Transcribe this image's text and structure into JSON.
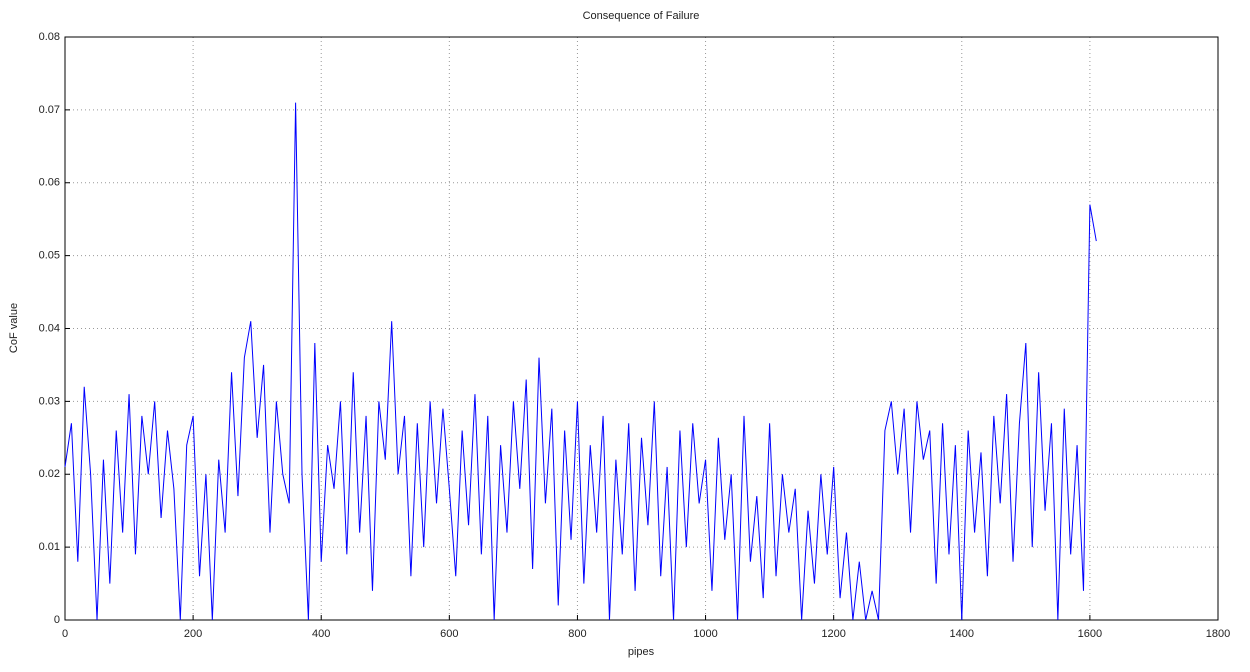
{
  "chart_data": {
    "type": "line",
    "title": "Consequence of Failure",
    "x_label": "pipes",
    "y_label": "CoF value",
    "color": "#0000ff",
    "grid": true,
    "xlim": [
      0,
      1800
    ],
    "xticks": [
      0,
      200,
      400,
      600,
      800,
      1000,
      1200,
      1400,
      1600,
      1800
    ],
    "ylim": [
      0,
      0.08
    ],
    "yticks": [
      0,
      0.01,
      0.02,
      0.03,
      0.04,
      0.05,
      0.06,
      0.07,
      0.08
    ],
    "x": [
      0,
      10,
      20,
      30,
      40,
      50,
      60,
      70,
      80,
      90,
      100,
      110,
      120,
      130,
      140,
      150,
      160,
      170,
      180,
      190,
      200,
      210,
      220,
      230,
      240,
      250,
      260,
      270,
      280,
      290,
      300,
      310,
      320,
      330,
      340,
      350,
      360,
      370,
      380,
      390,
      400,
      410,
      420,
      430,
      440,
      450,
      460,
      470,
      480,
      490,
      500,
      510,
      520,
      530,
      540,
      550,
      560,
      570,
      580,
      590,
      600,
      610,
      620,
      630,
      640,
      650,
      660,
      670,
      680,
      690,
      700,
      710,
      720,
      730,
      740,
      750,
      760,
      770,
      780,
      790,
      800,
      810,
      820,
      830,
      840,
      850,
      860,
      870,
      880,
      890,
      900,
      910,
      920,
      930,
      940,
      950,
      960,
      970,
      980,
      990,
      1000,
      1010,
      1020,
      1030,
      1040,
      1050,
      1060,
      1070,
      1080,
      1090,
      1100,
      1110,
      1120,
      1130,
      1140,
      1150,
      1160,
      1170,
      1180,
      1190,
      1200,
      1210,
      1220,
      1230,
      1240,
      1250,
      1260,
      1270,
      1280,
      1290,
      1300,
      1310,
      1320,
      1330,
      1340,
      1350,
      1360,
      1370,
      1380,
      1390,
      1400,
      1410,
      1420,
      1430,
      1440,
      1450,
      1460,
      1470,
      1480,
      1490,
      1500,
      1510,
      1520,
      1530,
      1540,
      1550,
      1560,
      1570,
      1580,
      1590,
      1600,
      1610
    ],
    "values": [
      0.021,
      0.027,
      0.008,
      0.032,
      0.02,
      0.0,
      0.022,
      0.005,
      0.026,
      0.012,
      0.031,
      0.009,
      0.028,
      0.02,
      0.03,
      0.014,
      0.026,
      0.018,
      0.0,
      0.024,
      0.028,
      0.006,
      0.02,
      0.0,
      0.022,
      0.012,
      0.034,
      0.017,
      0.036,
      0.041,
      0.025,
      0.035,
      0.012,
      0.03,
      0.02,
      0.016,
      0.071,
      0.02,
      0.0,
      0.038,
      0.008,
      0.024,
      0.018,
      0.03,
      0.009,
      0.034,
      0.012,
      0.028,
      0.004,
      0.03,
      0.022,
      0.041,
      0.02,
      0.028,
      0.006,
      0.027,
      0.01,
      0.03,
      0.016,
      0.029,
      0.018,
      0.006,
      0.026,
      0.013,
      0.031,
      0.009,
      0.028,
      0.0,
      0.024,
      0.012,
      0.03,
      0.018,
      0.033,
      0.007,
      0.036,
      0.016,
      0.029,
      0.002,
      0.026,
      0.011,
      0.03,
      0.005,
      0.024,
      0.012,
      0.028,
      0.0,
      0.022,
      0.009,
      0.027,
      0.004,
      0.025,
      0.013,
      0.03,
      0.006,
      0.021,
      0.0,
      0.026,
      0.01,
      0.027,
      0.016,
      0.022,
      0.004,
      0.025,
      0.011,
      0.02,
      0.0,
      0.028,
      0.008,
      0.017,
      0.003,
      0.027,
      0.006,
      0.02,
      0.012,
      0.018,
      0.0,
      0.015,
      0.005,
      0.02,
      0.009,
      0.021,
      0.003,
      0.012,
      0.0,
      0.008,
      0.0,
      0.004,
      0.0,
      0.026,
      0.03,
      0.02,
      0.029,
      0.012,
      0.03,
      0.022,
      0.026,
      0.005,
      0.027,
      0.009,
      0.024,
      0.0,
      0.026,
      0.012,
      0.023,
      0.006,
      0.028,
      0.016,
      0.031,
      0.008,
      0.027,
      0.038,
      0.01,
      0.034,
      0.015,
      0.027,
      0.0,
      0.029,
      0.009,
      0.024,
      0.004,
      0.057,
      0.052
    ]
  }
}
